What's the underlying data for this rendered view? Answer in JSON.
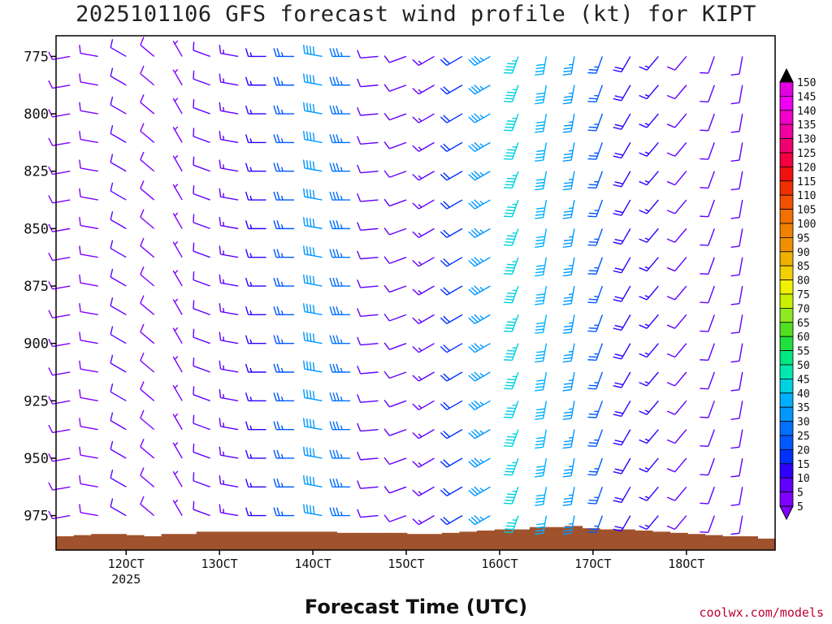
{
  "title": "2025101106 GFS forecast wind profile (kt) for KIPT",
  "credit": "coolwx.com/models",
  "chart_data": {
    "type": "wind-barb-profile",
    "title": "2025101106 GFS forecast wind profile (kt) for KIPT",
    "xlabel": "Forecast Time (UTC)",
    "ylabel": "",
    "y_unit": "hPa",
    "x_unit": "hours from 11/06Z",
    "xlim": [
      -1.5,
      75.5
    ],
    "ylim": [
      766,
      990
    ],
    "levels": [
      775,
      787.5,
      800,
      812.5,
      825,
      837.5,
      850,
      862.5,
      875,
      887.5,
      900,
      912.5,
      925,
      937.5,
      950,
      962.5,
      975
    ],
    "y_ticks": [
      775,
      800,
      825,
      850,
      875,
      900,
      925,
      950,
      975
    ],
    "y_tick_labels": [
      "775",
      "800",
      "825",
      "850",
      "875",
      "900",
      "925",
      "950",
      "975"
    ],
    "x_ticks": [
      6,
      16,
      26,
      36,
      46,
      56,
      66
    ],
    "x_tick_labels": [
      "12OCT",
      "13OCT",
      "14OCT",
      "15OCT",
      "16OCT",
      "17OCT",
      "18OCT"
    ],
    "x_sublabel": "2025",
    "times": [
      0,
      3,
      6,
      9,
      12,
      15,
      18,
      21,
      24,
      27,
      30,
      33,
      36,
      39,
      42,
      45,
      48,
      51,
      54,
      57,
      60,
      63,
      66,
      69,
      72
    ],
    "colorbar": {
      "labels": [
        "5",
        "10",
        "15",
        "20",
        "25",
        "30",
        "35",
        "40",
        "45",
        "50",
        "55",
        "60",
        "65",
        "70",
        "75",
        "80",
        "85",
        "90",
        "95",
        "100",
        "105",
        "110",
        "115",
        "120",
        "125",
        "130",
        "135",
        "140",
        "145",
        "150"
      ],
      "colors": [
        "#8000ff",
        "#6000ff",
        "#3000ff",
        "#0030ff",
        "#0058ff",
        "#0070ff",
        "#0098ff",
        "#00b0ff",
        "#00d0e0",
        "#00e8b0",
        "#00e880",
        "#20e040",
        "#50e020",
        "#90e820",
        "#c8f000",
        "#f0f000",
        "#f0d000",
        "#f0b000",
        "#f09000",
        "#f08000",
        "#f07000",
        "#f05000",
        "#f03000",
        "#f01010",
        "#f00040",
        "#f00070",
        "#f000a0",
        "#f000c8",
        "#f000f0",
        "#e000e0"
      ]
    },
    "terrain": {
      "color": "#a0522d",
      "surface_pressure_hpa": [
        984,
        983.5,
        983,
        983,
        983.5,
        984,
        983,
        983,
        982,
        982,
        982,
        982,
        982,
        982,
        982,
        982,
        982.5,
        982.5,
        982.5,
        982.5,
        983,
        983,
        982.5,
        982,
        981.5,
        981,
        981,
        980,
        980,
        979.5,
        980.5,
        981,
        981,
        981.5,
        982,
        982.5,
        983,
        983.5,
        984,
        984,
        985
      ]
    },
    "series": [
      {
        "level": 775,
        "directions": [
          260,
          280,
          300,
          310,
          330,
          290,
          280,
          270,
          270,
          280,
          270,
          265,
          250,
          240,
          240,
          240,
          200,
          190,
          190,
          200,
          210,
          220,
          220,
          200,
          190
        ],
        "speeds": [
          9,
          9,
          10,
          9,
          6,
          10,
          13,
          17,
          26,
          38,
          33,
          10,
          11,
          14,
          22,
          37,
          45,
          42,
          36,
          26,
          19,
          16,
          12,
          10,
          10
        ]
      },
      {
        "level": 787.5,
        "directions": [
          260,
          280,
          300,
          310,
          330,
          290,
          280,
          270,
          270,
          280,
          270,
          265,
          250,
          240,
          240,
          240,
          200,
          190,
          190,
          200,
          210,
          220,
          220,
          200,
          190
        ],
        "speeds": [
          9,
          9,
          10,
          9,
          6,
          10,
          13,
          17,
          26,
          38,
          33,
          10,
          11,
          14,
          22,
          37,
          45,
          42,
          36,
          26,
          19,
          16,
          12,
          10,
          10
        ]
      },
      {
        "level": 800,
        "directions": [
          260,
          280,
          300,
          310,
          330,
          290,
          280,
          270,
          270,
          280,
          270,
          265,
          250,
          240,
          240,
          240,
          200,
          190,
          190,
          200,
          210,
          220,
          220,
          200,
          190
        ],
        "speeds": [
          9,
          9,
          10,
          9,
          6,
          10,
          13,
          17,
          26,
          38,
          33,
          10,
          11,
          14,
          22,
          37,
          45,
          42,
          36,
          26,
          19,
          16,
          12,
          10,
          10
        ]
      },
      {
        "level": 812.5,
        "directions": [
          260,
          280,
          300,
          310,
          330,
          290,
          280,
          270,
          270,
          280,
          270,
          265,
          250,
          240,
          240,
          240,
          200,
          190,
          190,
          200,
          210,
          220,
          220,
          200,
          190
        ],
        "speeds": [
          9,
          9,
          10,
          9,
          6,
          10,
          13,
          17,
          26,
          38,
          33,
          10,
          11,
          14,
          22,
          37,
          45,
          42,
          36,
          26,
          19,
          16,
          12,
          10,
          10
        ]
      },
      {
        "level": 825,
        "directions": [
          260,
          280,
          300,
          310,
          330,
          290,
          280,
          270,
          270,
          280,
          270,
          265,
          250,
          240,
          240,
          240,
          200,
          190,
          190,
          200,
          210,
          220,
          220,
          200,
          190
        ],
        "speeds": [
          9,
          9,
          10,
          9,
          6,
          10,
          13,
          17,
          26,
          38,
          33,
          10,
          11,
          14,
          22,
          37,
          45,
          42,
          36,
          26,
          19,
          16,
          12,
          10,
          10
        ]
      },
      {
        "level": 837.5,
        "directions": [
          260,
          280,
          300,
          310,
          330,
          290,
          280,
          270,
          270,
          280,
          270,
          265,
          250,
          240,
          240,
          240,
          200,
          190,
          190,
          200,
          210,
          220,
          220,
          200,
          190
        ],
        "speeds": [
          9,
          9,
          10,
          9,
          6,
          10,
          13,
          17,
          26,
          38,
          33,
          10,
          11,
          14,
          22,
          37,
          45,
          42,
          36,
          26,
          19,
          16,
          12,
          10,
          10
        ]
      },
      {
        "level": 850,
        "directions": [
          260,
          280,
          300,
          310,
          330,
          290,
          280,
          270,
          270,
          280,
          270,
          265,
          250,
          240,
          240,
          240,
          200,
          190,
          190,
          200,
          210,
          220,
          220,
          200,
          190
        ],
        "speeds": [
          9,
          9,
          10,
          9,
          6,
          10,
          13,
          17,
          26,
          38,
          33,
          10,
          11,
          14,
          22,
          37,
          45,
          42,
          36,
          26,
          19,
          16,
          12,
          10,
          10
        ]
      },
      {
        "level": 862.5,
        "directions": [
          260,
          280,
          300,
          310,
          330,
          290,
          280,
          270,
          270,
          280,
          270,
          265,
          250,
          240,
          240,
          240,
          200,
          190,
          190,
          200,
          210,
          220,
          220,
          200,
          190
        ],
        "speeds": [
          9,
          9,
          10,
          9,
          6,
          10,
          13,
          17,
          26,
          38,
          33,
          10,
          11,
          14,
          22,
          37,
          45,
          42,
          36,
          26,
          19,
          16,
          12,
          10,
          10
        ]
      },
      {
        "level": 875,
        "directions": [
          260,
          280,
          300,
          310,
          330,
          290,
          280,
          270,
          270,
          280,
          270,
          265,
          250,
          240,
          240,
          240,
          200,
          190,
          190,
          200,
          210,
          220,
          220,
          200,
          190
        ],
        "speeds": [
          9,
          9,
          10,
          9,
          6,
          10,
          13,
          17,
          26,
          38,
          33,
          10,
          11,
          14,
          22,
          37,
          45,
          42,
          36,
          26,
          19,
          16,
          12,
          10,
          10
        ]
      },
      {
        "level": 887.5,
        "directions": [
          260,
          280,
          300,
          310,
          330,
          290,
          280,
          270,
          270,
          280,
          270,
          265,
          250,
          240,
          240,
          240,
          200,
          190,
          190,
          200,
          210,
          220,
          220,
          200,
          190
        ],
        "speeds": [
          9,
          9,
          10,
          9,
          6,
          10,
          13,
          17,
          26,
          38,
          33,
          10,
          11,
          14,
          22,
          37,
          45,
          42,
          36,
          26,
          19,
          16,
          12,
          10,
          10
        ]
      },
      {
        "level": 900,
        "directions": [
          260,
          280,
          300,
          310,
          330,
          290,
          280,
          270,
          270,
          280,
          270,
          265,
          250,
          240,
          240,
          240,
          200,
          190,
          190,
          200,
          210,
          220,
          220,
          200,
          190
        ],
        "speeds": [
          9,
          9,
          10,
          9,
          6,
          10,
          13,
          17,
          26,
          38,
          33,
          10,
          11,
          14,
          22,
          37,
          45,
          42,
          36,
          26,
          19,
          16,
          12,
          10,
          10
        ]
      },
      {
        "level": 912.5,
        "directions": [
          260,
          280,
          300,
          310,
          330,
          290,
          280,
          270,
          270,
          280,
          270,
          265,
          250,
          240,
          240,
          240,
          200,
          190,
          190,
          200,
          210,
          220,
          220,
          200,
          190
        ],
        "speeds": [
          9,
          9,
          10,
          9,
          6,
          10,
          13,
          17,
          26,
          38,
          33,
          10,
          11,
          14,
          22,
          37,
          45,
          42,
          36,
          26,
          19,
          16,
          12,
          10,
          10
        ]
      },
      {
        "level": 925,
        "directions": [
          260,
          280,
          300,
          310,
          330,
          290,
          280,
          270,
          270,
          280,
          270,
          265,
          250,
          240,
          240,
          240,
          200,
          190,
          190,
          200,
          210,
          220,
          220,
          200,
          190
        ],
        "speeds": [
          9,
          9,
          10,
          9,
          6,
          10,
          13,
          17,
          26,
          38,
          33,
          10,
          11,
          14,
          22,
          37,
          45,
          42,
          36,
          26,
          19,
          16,
          12,
          10,
          10
        ]
      },
      {
        "level": 937.5,
        "directions": [
          260,
          280,
          300,
          310,
          330,
          290,
          280,
          270,
          270,
          280,
          270,
          265,
          250,
          240,
          240,
          240,
          200,
          190,
          190,
          200,
          210,
          220,
          220,
          200,
          190
        ],
        "speeds": [
          9,
          9,
          10,
          9,
          6,
          10,
          13,
          17,
          26,
          38,
          33,
          10,
          11,
          14,
          22,
          37,
          45,
          42,
          36,
          26,
          19,
          16,
          12,
          10,
          10
        ]
      },
      {
        "level": 950,
        "directions": [
          260,
          280,
          300,
          310,
          330,
          290,
          280,
          270,
          270,
          280,
          270,
          265,
          250,
          240,
          240,
          240,
          200,
          190,
          190,
          200,
          210,
          220,
          220,
          200,
          190
        ],
        "speeds": [
          9,
          9,
          10,
          9,
          6,
          10,
          13,
          17,
          26,
          38,
          33,
          10,
          11,
          14,
          22,
          37,
          45,
          42,
          36,
          26,
          19,
          16,
          12,
          10,
          10
        ]
      },
      {
        "level": 962.5,
        "directions": [
          260,
          280,
          300,
          310,
          330,
          290,
          280,
          270,
          270,
          280,
          270,
          265,
          250,
          240,
          240,
          240,
          200,
          190,
          190,
          200,
          210,
          220,
          220,
          200,
          190
        ],
        "speeds": [
          9,
          9,
          10,
          9,
          6,
          10,
          13,
          17,
          26,
          38,
          33,
          10,
          11,
          14,
          22,
          37,
          45,
          42,
          36,
          26,
          19,
          16,
          12,
          10,
          10
        ]
      },
      {
        "level": 975,
        "directions": [
          260,
          280,
          300,
          310,
          330,
          290,
          280,
          270,
          270,
          280,
          270,
          265,
          250,
          240,
          240,
          240,
          200,
          190,
          190,
          200,
          210,
          220,
          220,
          200,
          190
        ],
        "speeds": [
          9,
          9,
          10,
          9,
          6,
          10,
          13,
          17,
          26,
          38,
          33,
          10,
          11,
          14,
          22,
          37,
          45,
          42,
          36,
          26,
          19,
          16,
          12,
          10,
          10
        ]
      }
    ]
  }
}
